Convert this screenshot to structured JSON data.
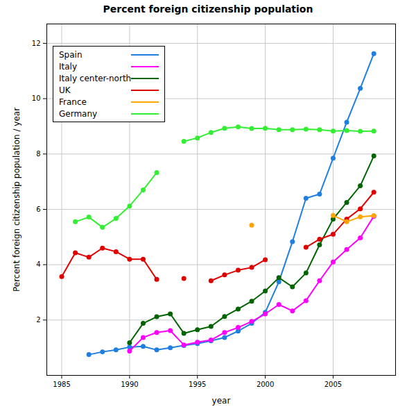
{
  "chart_data": {
    "type": "line",
    "title": "Percent foreign citizenship population",
    "x_label": "year",
    "y_label": "Percent foreign citizenship population / year",
    "x": [
      1985,
      1986,
      1987,
      1988,
      1989,
      1990,
      1991,
      1992,
      1993,
      1994,
      1995,
      1996,
      1997,
      1998,
      1999,
      2000,
      2001,
      2002,
      2003,
      2004,
      2005,
      2006,
      2007,
      2008
    ],
    "series": [
      {
        "name": "Spain",
        "color": "#1f7fe0",
        "values": [
          null,
          null,
          0.75,
          0.85,
          0.92,
          1.02,
          1.05,
          0.92,
          1.0,
          1.08,
          1.15,
          1.25,
          1.37,
          1.6,
          1.88,
          2.28,
          3.38,
          4.83,
          6.4,
          6.55,
          7.85,
          9.15,
          10.37,
          11.63
        ]
      },
      {
        "name": "Italy",
        "color": "#ff00ff",
        "values": [
          null,
          null,
          null,
          null,
          null,
          0.88,
          1.37,
          1.55,
          1.62,
          1.1,
          1.2,
          1.28,
          1.55,
          1.73,
          1.95,
          2.22,
          2.56,
          2.33,
          2.7,
          3.42,
          4.1,
          4.55,
          4.97,
          5.75
        ]
      },
      {
        "name": "Italy center-north",
        "color": "#006400",
        "values": [
          null,
          null,
          null,
          null,
          null,
          1.18,
          1.88,
          2.12,
          2.22,
          1.52,
          1.65,
          1.77,
          2.13,
          2.4,
          2.68,
          3.05,
          3.53,
          3.2,
          3.7,
          4.72,
          5.65,
          6.25,
          6.85,
          7.93
        ]
      },
      {
        "name": "UK",
        "color": "#e00000",
        "values": [
          3.57,
          4.43,
          4.27,
          4.6,
          4.47,
          4.2,
          4.2,
          3.47,
          null,
          3.5,
          null,
          3.42,
          3.63,
          3.8,
          3.9,
          4.18,
          null,
          null,
          4.63,
          4.92,
          5.1,
          5.65,
          6.02,
          6.62
        ]
      },
      {
        "name": "France",
        "color": "#ffa500",
        "values": [
          null,
          null,
          null,
          null,
          null,
          null,
          null,
          null,
          null,
          null,
          null,
          null,
          null,
          null,
          5.43,
          null,
          null,
          null,
          null,
          null,
          5.78,
          5.55,
          5.73,
          5.77
        ]
      },
      {
        "name": "Germany",
        "color": "#33ee33",
        "values": [
          null,
          5.55,
          5.72,
          5.35,
          5.67,
          6.12,
          6.7,
          7.33,
          null,
          8.46,
          8.58,
          8.78,
          8.93,
          8.98,
          8.92,
          8.93,
          8.88,
          8.88,
          8.9,
          8.88,
          8.83,
          8.85,
          8.82,
          8.83
        ]
      }
    ],
    "xlim": [
      1983.9,
      2009.6
    ],
    "xticks": [
      1985,
      1990,
      1995,
      2000,
      2005
    ],
    "ylim": [
      0,
      12.7
    ],
    "yticks": [
      2,
      4,
      6,
      8,
      10,
      12
    ],
    "grid": true,
    "legend": "top-left",
    "marker": "circle"
  }
}
